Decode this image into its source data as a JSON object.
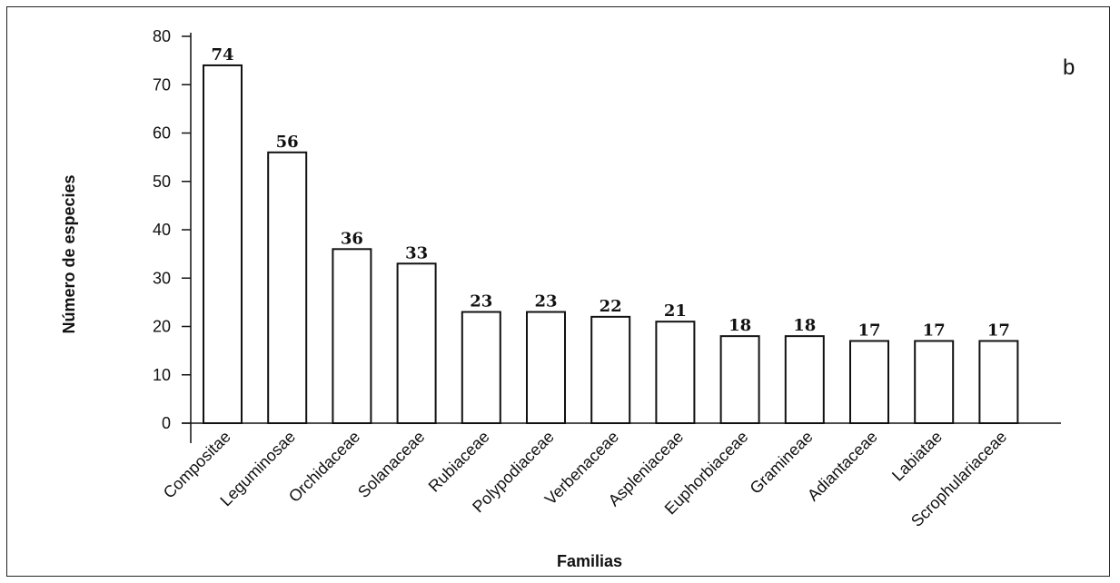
{
  "panel_label": "b",
  "chart_data": {
    "type": "bar",
    "xlabel": "Familias",
    "ylabel": "Número de especies",
    "ylim": [
      0,
      80
    ],
    "yticks": [
      0,
      10,
      20,
      30,
      40,
      50,
      60,
      70,
      80
    ],
    "categories": [
      "Compositae",
      "Leguminosae",
      "Orchidaceae",
      "Solanaceae",
      "Rubiaceae",
      "Polypodiaceae",
      "Verbenaceae",
      "Aspleniaceae",
      "Euphorbiaceae",
      "Gramineae",
      "Adiantaceae",
      "Labiatae",
      "Scrophulariaceae"
    ],
    "values": [
      74,
      56,
      36,
      33,
      23,
      23,
      22,
      21,
      18,
      18,
      17,
      17,
      17
    ],
    "grid": false,
    "legend": "none"
  }
}
